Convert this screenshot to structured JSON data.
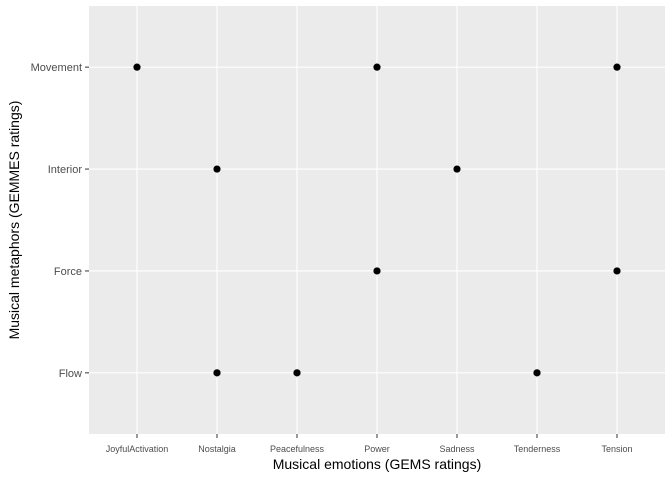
{
  "chart_data": {
    "type": "scatter",
    "xlabel": "Musical emotions (GEMS ratings)",
    "ylabel": "Musical metaphors (GEMMES ratings)",
    "x_categories": [
      "JoyfulActivation",
      "Nostalgia",
      "Peacefulness",
      "Power",
      "Sadness",
      "Tenderness",
      "Tension"
    ],
    "y_categories": [
      "Flow",
      "Force",
      "Interior",
      "Movement"
    ],
    "points": [
      {
        "x": "JoyfulActivation",
        "y": "Movement"
      },
      {
        "x": "Power",
        "y": "Movement"
      },
      {
        "x": "Tension",
        "y": "Movement"
      },
      {
        "x": "Nostalgia",
        "y": "Interior"
      },
      {
        "x": "Sadness",
        "y": "Interior"
      },
      {
        "x": "Power",
        "y": "Force"
      },
      {
        "x": "Tension",
        "y": "Force"
      },
      {
        "x": "Nostalgia",
        "y": "Flow"
      },
      {
        "x": "Peacefulness",
        "y": "Flow"
      },
      {
        "x": "Tenderness",
        "y": "Flow"
      }
    ],
    "grid": true,
    "legend": "none",
    "colors": {
      "panel_background": "#EBEBEB",
      "grid_major": "#FFFFFF",
      "point": "#000000"
    }
  }
}
